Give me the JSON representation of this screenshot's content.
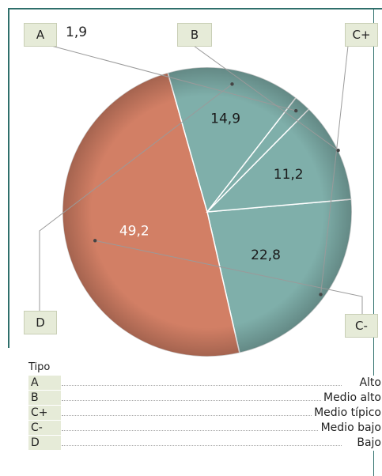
{
  "chart_data": {
    "type": "pie",
    "unit": "",
    "slices": [
      {
        "label": "C+",
        "value": 22.8,
        "display": "22,8",
        "color": "#7fafaa"
      },
      {
        "label": "C-",
        "value": 49.2,
        "display": "49,2",
        "color": "#d27f65"
      },
      {
        "label": "D",
        "value": 14.9,
        "display": "14,9",
        "color": "#7fafaa"
      },
      {
        "label": "A",
        "value": 1.9,
        "display": "1,9",
        "color": "#7fafaa"
      },
      {
        "label": "B",
        "value": 11.2,
        "display": "11,2",
        "color": "#7fafaa"
      }
    ]
  },
  "legend": {
    "title": "Tipo",
    "items": [
      {
        "code": "A",
        "name": "Alto"
      },
      {
        "code": "B",
        "name": "Medio alto"
      },
      {
        "code": "C+",
        "name": "Medio típico"
      },
      {
        "code": "C-",
        "name": "Medio bajo"
      },
      {
        "code": "D",
        "name": "Bajo"
      }
    ]
  },
  "colors": {
    "accent_line": "#2f6f6b",
    "teal": "#7fafaa",
    "salmon": "#d27f65",
    "tag_bg": "#e6ebd8"
  }
}
